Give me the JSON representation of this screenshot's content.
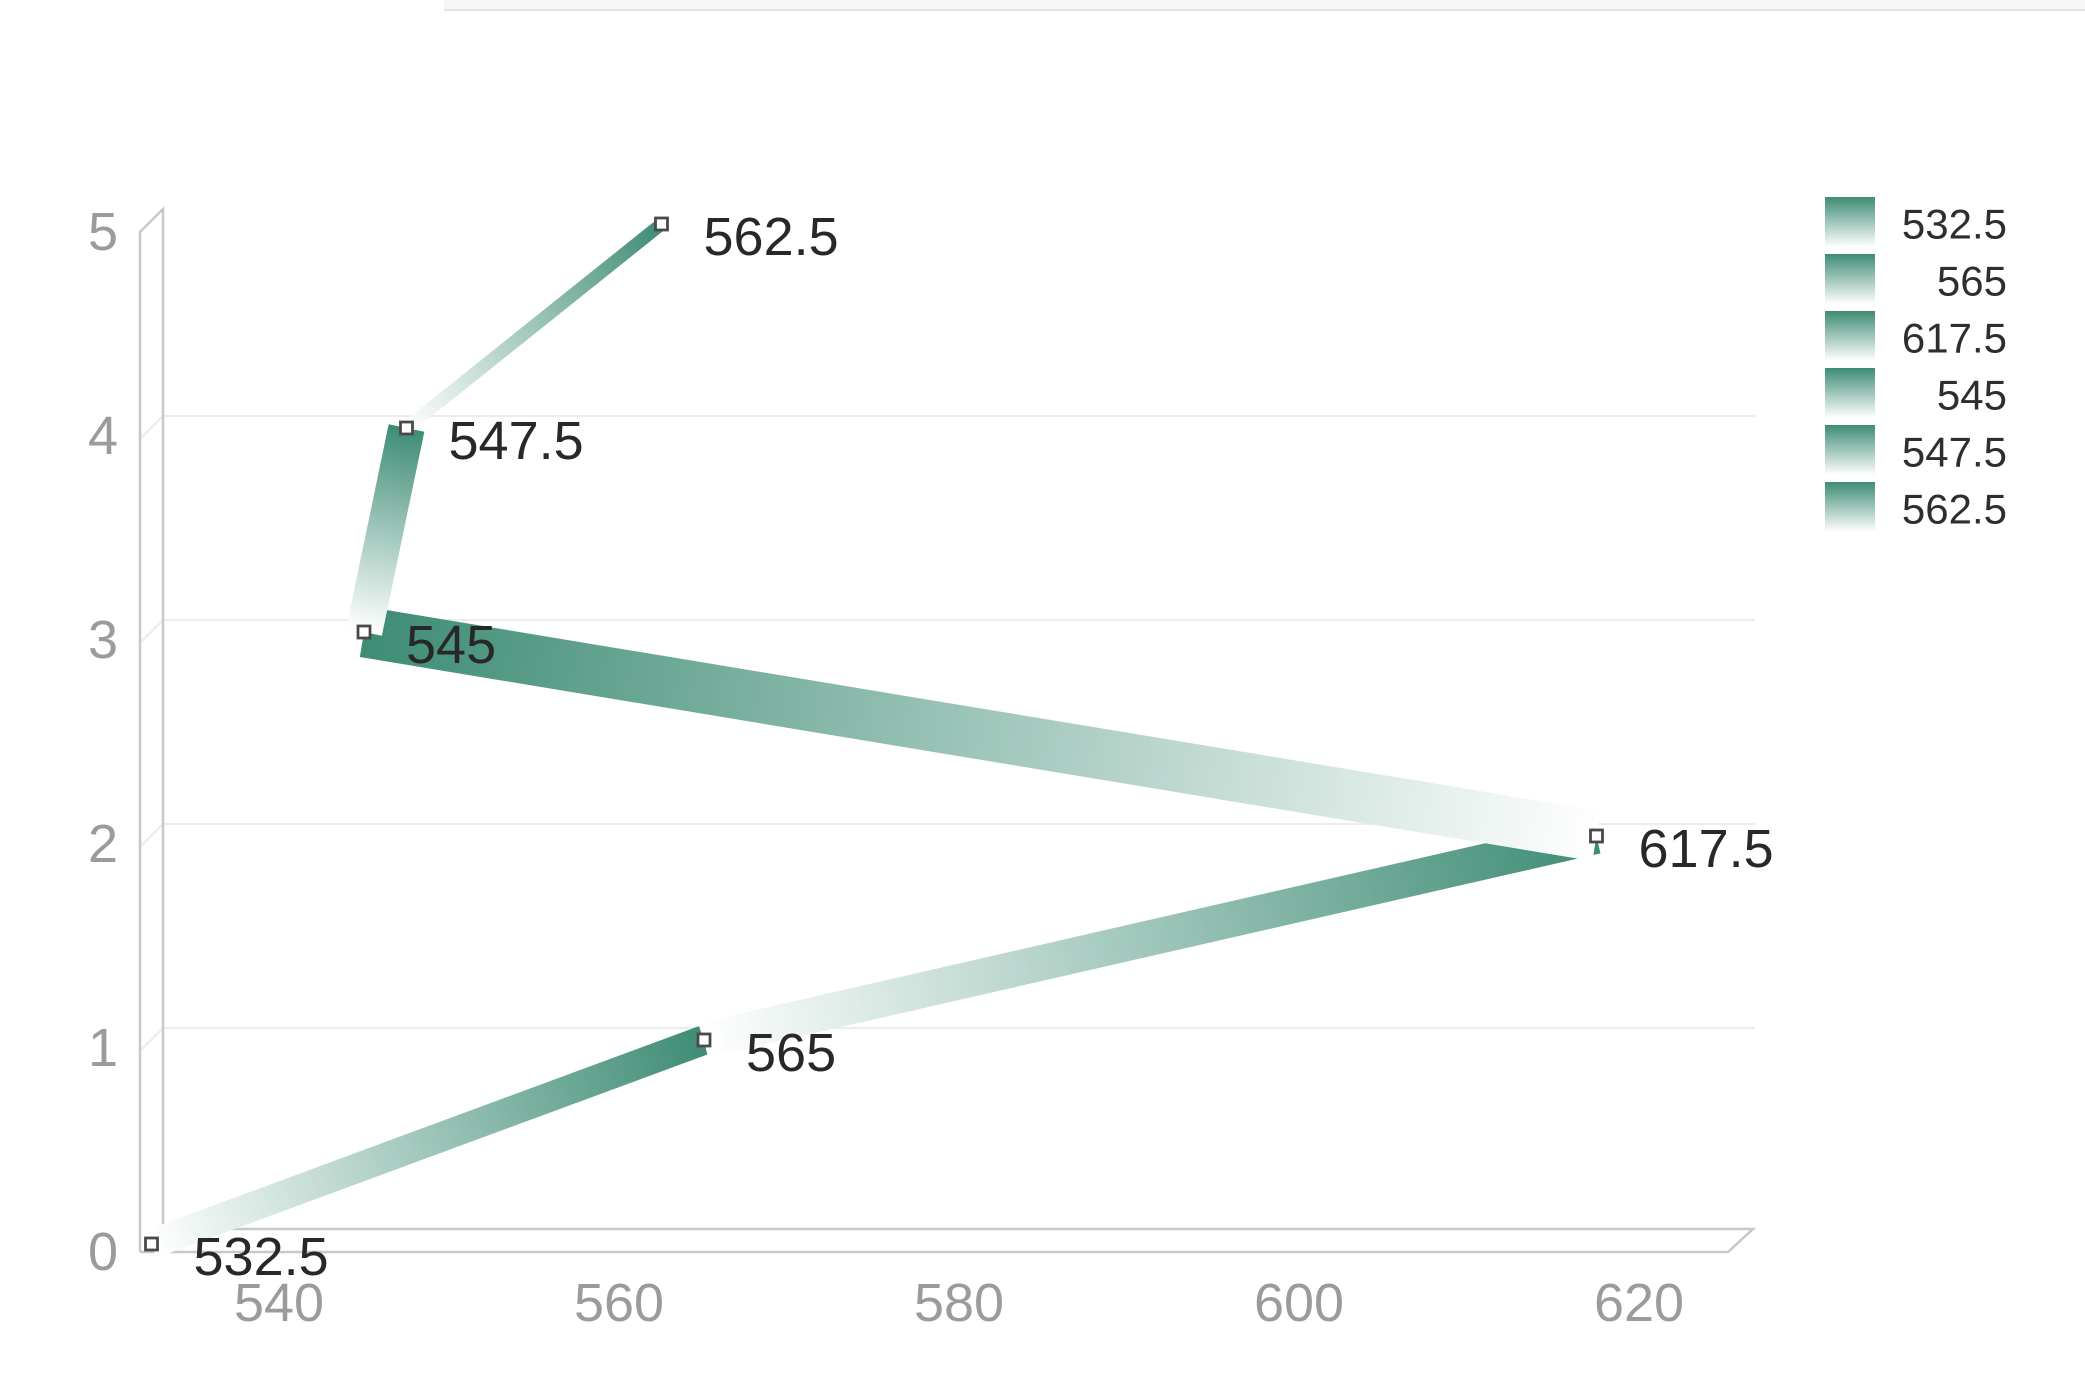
{
  "chart_data": {
    "type": "line",
    "style": "pseudo-3d gradient ribbon line, each segment fades light-to-dark toward the next point",
    "title": "",
    "xlabel": "",
    "ylabel": "",
    "points": [
      {
        "x": 532.5,
        "y": 0,
        "label": "532.5"
      },
      {
        "x": 565,
        "y": 1,
        "label": "565"
      },
      {
        "x": 617.5,
        "y": 2,
        "label": "617.5"
      },
      {
        "x": 545,
        "y": 3,
        "label": "545"
      },
      {
        "x": 547.5,
        "y": 4,
        "label": "547.5"
      },
      {
        "x": 562.5,
        "y": 5,
        "label": "562.5"
      }
    ],
    "x_ticks": [
      "540",
      "560",
      "580",
      "600",
      "620"
    ],
    "y_ticks": [
      "0",
      "1",
      "2",
      "3",
      "4",
      "5"
    ],
    "xlim": [
      532.5,
      626
    ],
    "ylim": [
      0,
      5
    ],
    "grid": "horizontal gridlines at y=1..4, drawn behind series",
    "legend": {
      "position": "top-right",
      "entries": [
        "532.5",
        "565",
        "617.5",
        "545",
        "547.5",
        "562.5"
      ]
    },
    "colors": {
      "ribbon_dark": "#3E8C75",
      "ribbon_light": "#FFFFFF",
      "grid": "#ECECEC",
      "axis": "#C8C8C8",
      "marker_fill": "#FFFFFF",
      "marker_stroke": "#4A4A4A",
      "point_label_text": "#282828",
      "tick_text": "#9B9B9B",
      "legend_text": "#2E2E2E"
    }
  }
}
